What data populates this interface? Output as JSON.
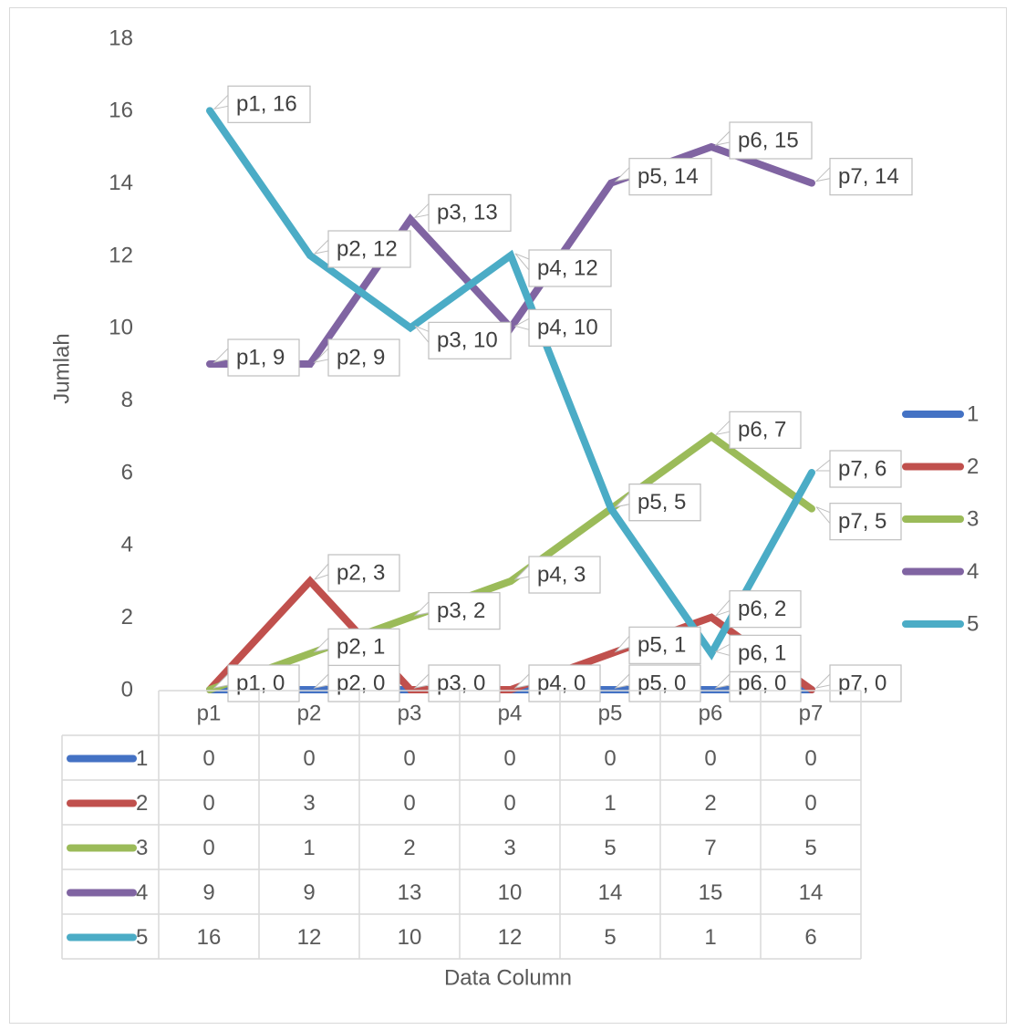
{
  "chart_data": {
    "type": "line",
    "categories": [
      "p1",
      "p2",
      "p3",
      "p4",
      "p5",
      "p6",
      "p7"
    ],
    "series": [
      {
        "name": "1",
        "color": "#4472C4",
        "values": [
          0,
          0,
          0,
          0,
          0,
          0,
          0
        ]
      },
      {
        "name": "2",
        "color": "#C0504D",
        "values": [
          0,
          3,
          0,
          0,
          1,
          2,
          0
        ]
      },
      {
        "name": "3",
        "color": "#9BBB59",
        "values": [
          0,
          1,
          2,
          3,
          5,
          7,
          5
        ]
      },
      {
        "name": "4",
        "color": "#8064A2",
        "values": [
          9,
          9,
          13,
          10,
          14,
          15,
          14
        ]
      },
      {
        "name": "5",
        "color": "#4BACC6",
        "values": [
          16,
          12,
          10,
          12,
          5,
          1,
          6
        ]
      }
    ],
    "title": "",
    "xlabel": "Data Column",
    "ylabel": "Jumlah",
    "ylim": [
      0,
      18
    ],
    "yticks": [
      "0",
      "2",
      "4",
      "6",
      "8",
      "10",
      "12",
      "14",
      "16",
      "18"
    ],
    "grid": false,
    "legend": "right",
    "data_table": true,
    "data_labels": {
      "format": "category, value",
      "shown_for_series": [
        "1",
        "2",
        "3",
        "4",
        "5"
      ],
      "hidden_points": [
        {
          "series": "2",
          "category": "p1"
        },
        {
          "series": "2",
          "category": "p3"
        },
        {
          "series": "2",
          "category": "p4"
        },
        {
          "series": "2",
          "category": "p7"
        },
        {
          "series": "3",
          "category": "p1"
        }
      ]
    }
  }
}
